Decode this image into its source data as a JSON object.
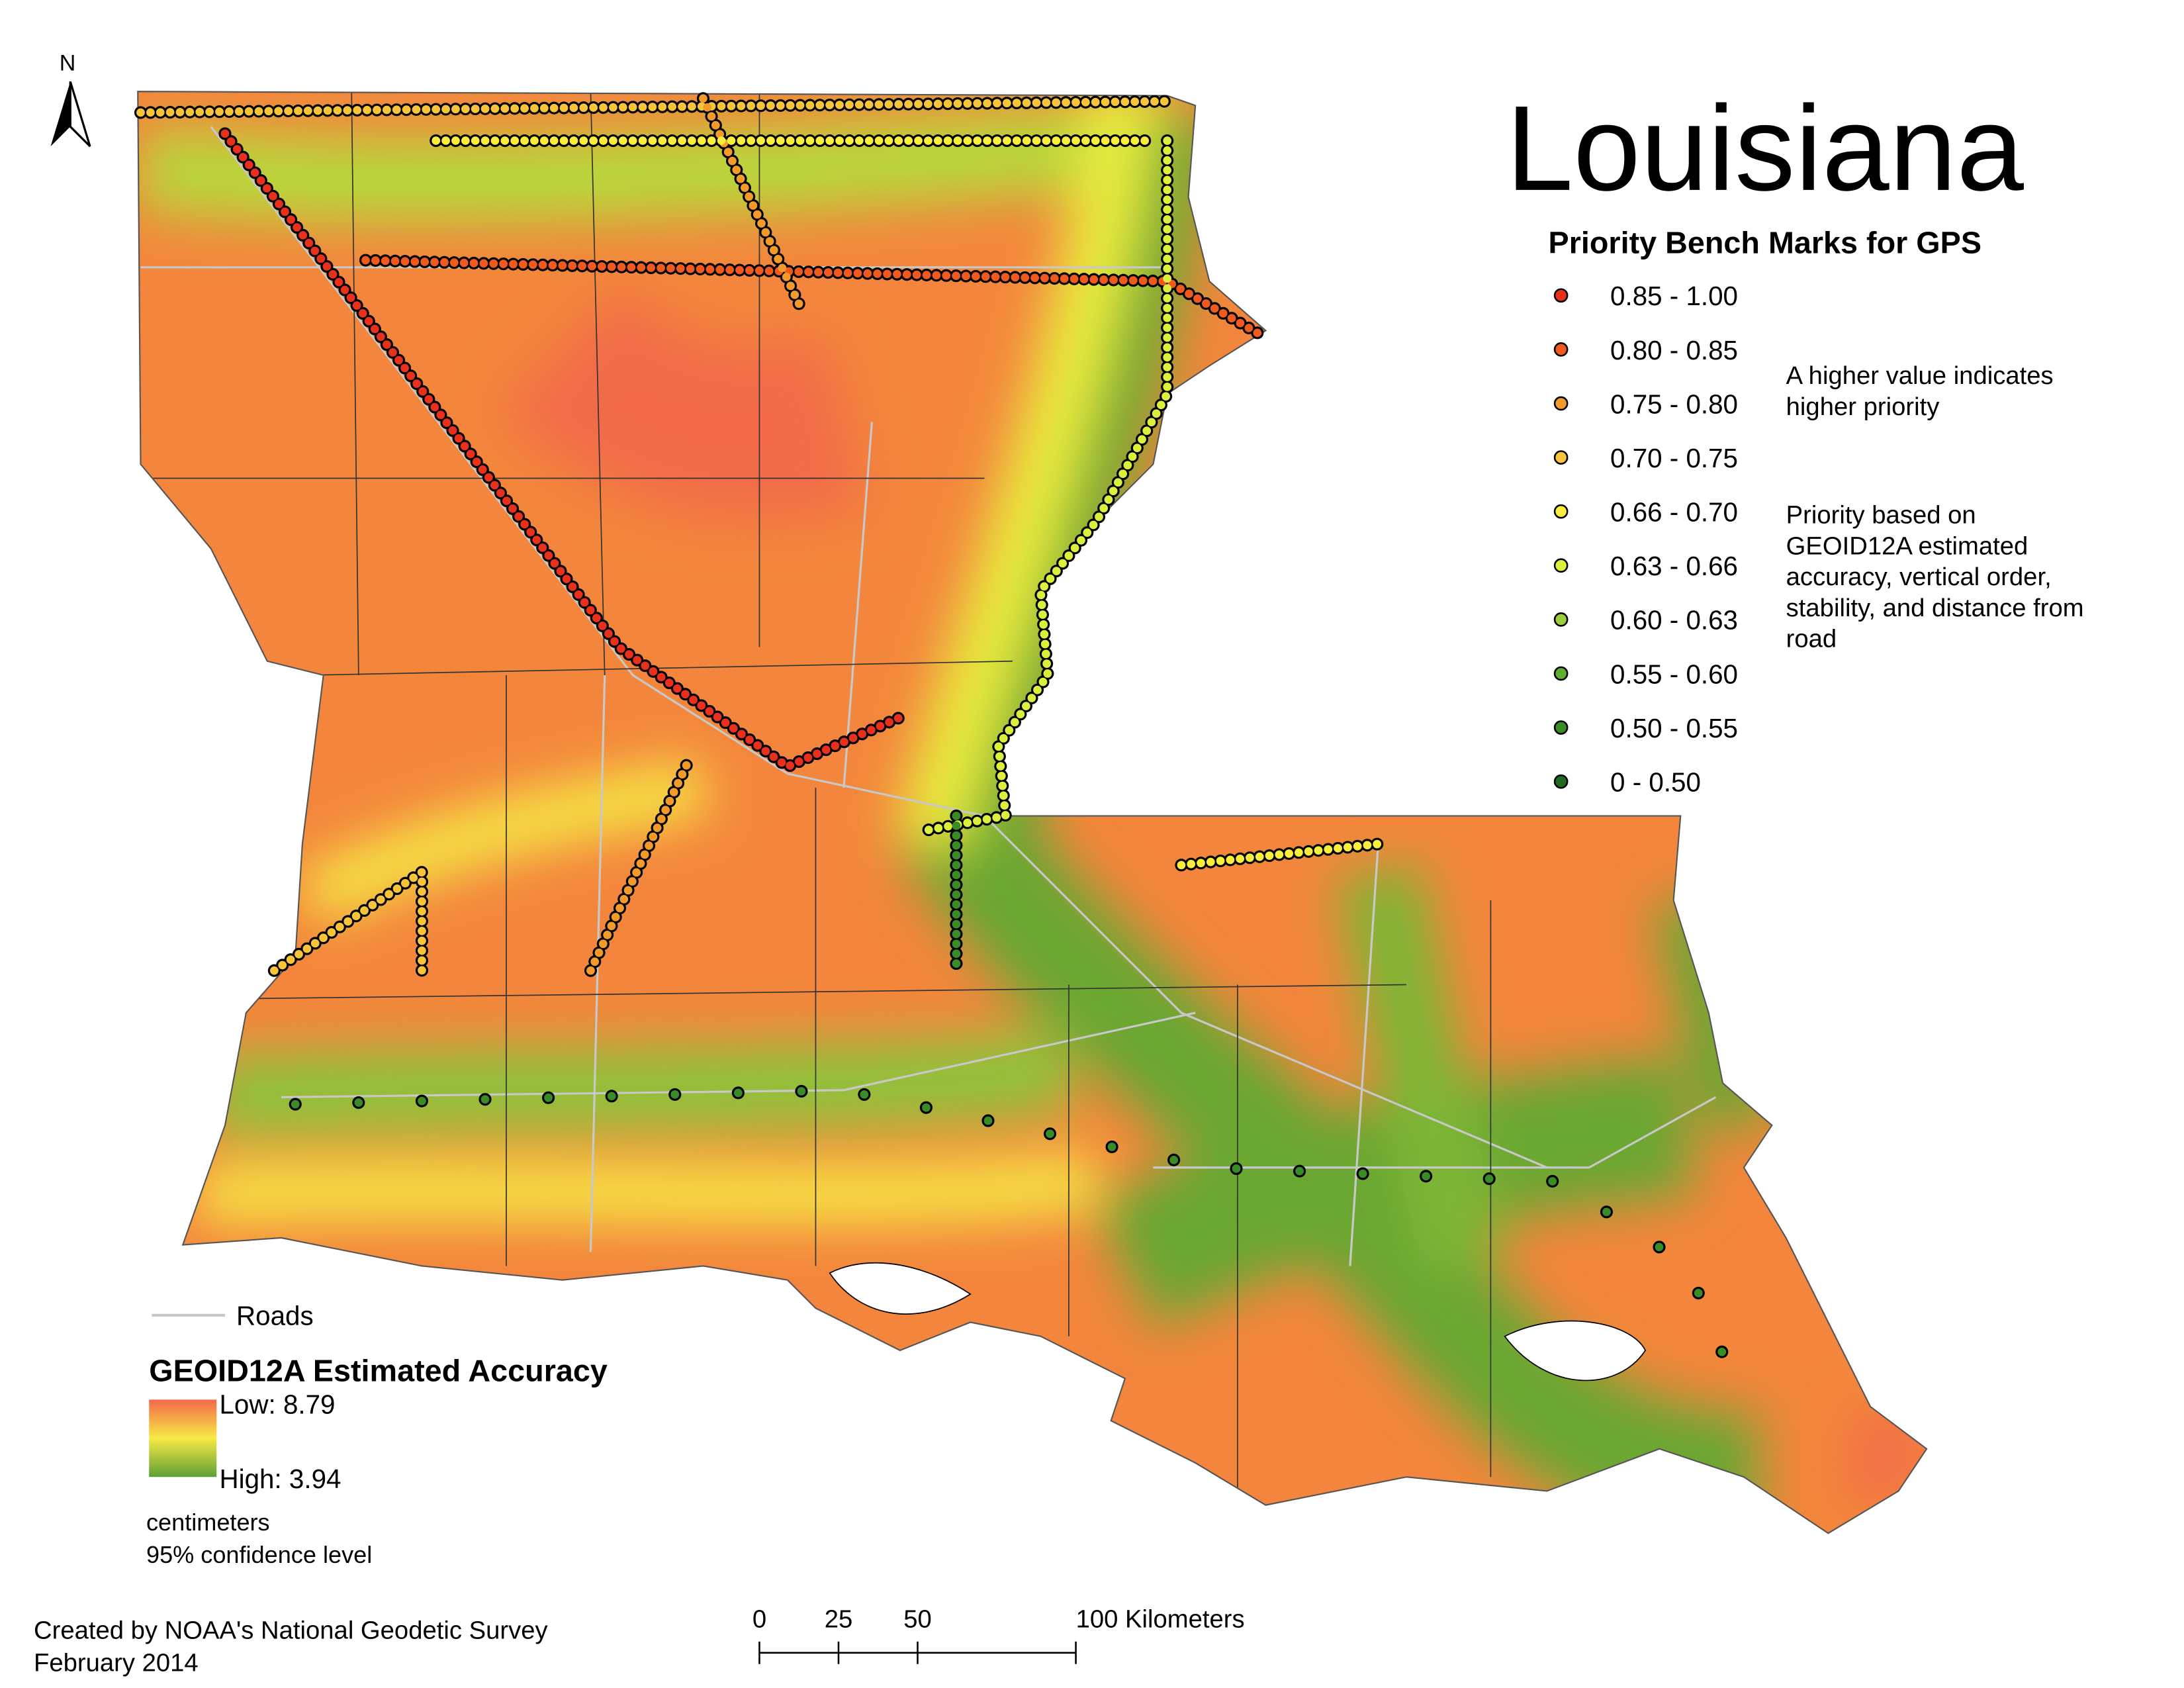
{
  "map": {
    "north": "N",
    "title": "Louisiana",
    "subtitle": "Priority Bench Marks for GPS",
    "priority_classes": [
      {
        "label": "0.85 - 1.00",
        "color": "#e8301c"
      },
      {
        "label": "0.80 - 0.85",
        "color": "#f05a1e"
      },
      {
        "label": "0.75 - 0.80",
        "color": "#f39a2b"
      },
      {
        "label": "0.70 - 0.75",
        "color": "#f7c43a"
      },
      {
        "label": "0.66 - 0.70",
        "color": "#f8ee3b"
      },
      {
        "label": "0.63 - 0.66",
        "color": "#dcef3c"
      },
      {
        "label": "0.60 - 0.63",
        "color": "#9ccc3a"
      },
      {
        "label": "0.55 - 0.60",
        "color": "#5fae2e"
      },
      {
        "label": "0.50 - 0.55",
        "color": "#3a8c26"
      },
      {
        "label": "0 - 0.50",
        "color": "#1f6b1f"
      }
    ],
    "notes": [
      "A higher value indicates higher priority",
      "Priority based on GEOID12A estimated accuracy, vertical order, stability, and distance from road"
    ],
    "roads_label": "Roads",
    "accuracy_legend": {
      "title": "GEOID12A Estimated Accuracy",
      "low": "Low: 8.79",
      "high": "High: 3.94",
      "units": "centimeters",
      "confidence": "95% confidence level"
    },
    "scale_bar": {
      "ticks": [
        0,
        25,
        50,
        {
          "value": 100,
          "label": "100 Kilometers"
        }
      ]
    },
    "credit": "Created by NOAA's National Geodetic Survey",
    "date": "February 2014"
  }
}
